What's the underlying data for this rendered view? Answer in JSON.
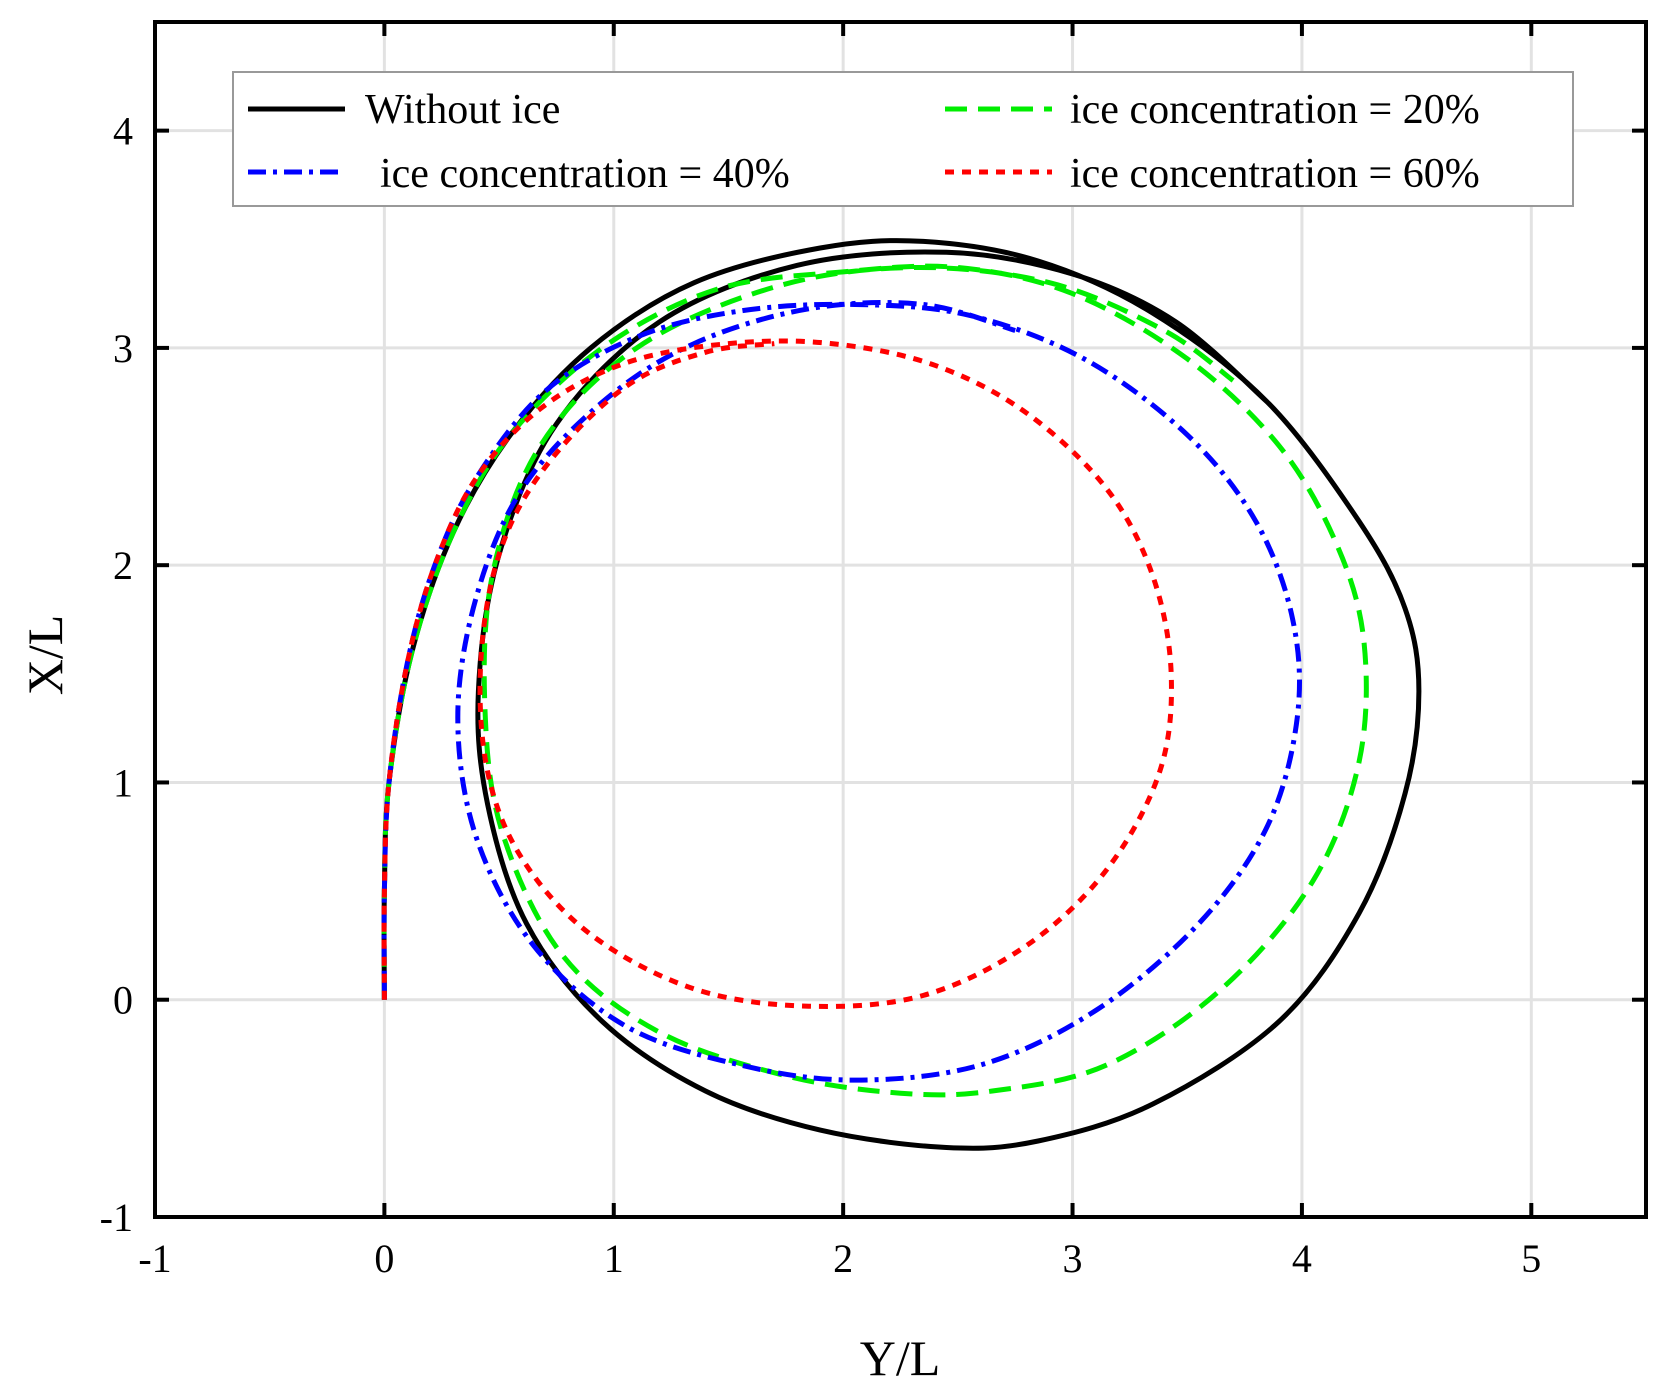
{
  "chart_data": {
    "type": "line",
    "title": "",
    "xlabel": "Y/L",
    "ylabel": "X/L",
    "xlim": [
      -1,
      5.5
    ],
    "ylim": [
      -1,
      4.5
    ],
    "xticks": [
      -1,
      0,
      1,
      2,
      3,
      4,
      5
    ],
    "yticks": [
      -1,
      0,
      1,
      2,
      3,
      4
    ],
    "xtick_labels": [
      "-1",
      "0",
      "1",
      "2",
      "3",
      "4",
      "5"
    ],
    "ytick_labels": [
      "-1",
      "0",
      "1",
      "2",
      "3",
      "4"
    ],
    "grid": true,
    "legend": {
      "location": "top",
      "columns": 2
    },
    "series": [
      {
        "name": "Without ice",
        "color": "#000000",
        "style": "solid",
        "points": [
          [
            0,
            0
          ],
          [
            0,
            0.5
          ],
          [
            0.02,
            1.0
          ],
          [
            0.12,
            1.6
          ],
          [
            0.3,
            2.15
          ],
          [
            0.55,
            2.6
          ],
          [
            0.9,
            3.0
          ],
          [
            1.35,
            3.3
          ],
          [
            1.9,
            3.46
          ],
          [
            2.35,
            3.49
          ],
          [
            2.85,
            3.4
          ],
          [
            3.35,
            3.16
          ],
          [
            3.85,
            2.75
          ],
          [
            4.25,
            2.2
          ],
          [
            4.45,
            1.8
          ],
          [
            4.51,
            1.42
          ],
          [
            4.45,
            0.95
          ],
          [
            4.25,
            0.4
          ],
          [
            3.9,
            -0.1
          ],
          [
            3.35,
            -0.48
          ],
          [
            2.85,
            -0.65
          ],
          [
            2.45,
            -0.68
          ],
          [
            1.9,
            -0.6
          ],
          [
            1.4,
            -0.42
          ],
          [
            0.95,
            -0.1
          ],
          [
            0.62,
            0.35
          ],
          [
            0.45,
            0.9
          ],
          [
            0.41,
            1.42
          ],
          [
            0.5,
            2.05
          ],
          [
            0.75,
            2.65
          ],
          [
            1.2,
            3.12
          ],
          [
            1.8,
            3.38
          ],
          [
            2.45,
            3.44
          ],
          [
            3.0,
            3.34
          ],
          [
            3.45,
            3.12
          ],
          [
            3.85,
            2.75
          ]
        ]
      },
      {
        "name": "ice concentration = 20%",
        "color": "#00ee00",
        "style": "dashed",
        "points": [
          [
            0,
            0
          ],
          [
            0,
            0.5
          ],
          [
            0.02,
            1.0
          ],
          [
            0.12,
            1.6
          ],
          [
            0.3,
            2.15
          ],
          [
            0.55,
            2.6
          ],
          [
            0.95,
            3.0
          ],
          [
            1.45,
            3.27
          ],
          [
            2.0,
            3.35
          ],
          [
            2.5,
            3.37
          ],
          [
            3.0,
            3.25
          ],
          [
            3.5,
            2.95
          ],
          [
            3.9,
            2.55
          ],
          [
            4.15,
            2.1
          ],
          [
            4.27,
            1.65
          ],
          [
            4.25,
            1.1
          ],
          [
            4.05,
            0.55
          ],
          [
            3.65,
            0.05
          ],
          [
            3.15,
            -0.3
          ],
          [
            2.65,
            -0.42
          ],
          [
            2.25,
            -0.43
          ],
          [
            1.75,
            -0.35
          ],
          [
            1.2,
            -0.15
          ],
          [
            0.78,
            0.2
          ],
          [
            0.52,
            0.75
          ],
          [
            0.44,
            1.3
          ],
          [
            0.47,
            1.95
          ],
          [
            0.68,
            2.55
          ],
          [
            1.1,
            3.0
          ],
          [
            1.7,
            3.28
          ],
          [
            2.3,
            3.37
          ],
          [
            2.9,
            3.3
          ],
          [
            3.4,
            3.08
          ],
          [
            3.7,
            2.85
          ]
        ]
      },
      {
        "name": "ice concentration = 40%",
        "color": "#0000ff",
        "style": "dashdot",
        "points": [
          [
            0,
            0
          ],
          [
            0,
            0.5
          ],
          [
            0.02,
            1.0
          ],
          [
            0.1,
            1.55
          ],
          [
            0.22,
            2.0
          ],
          [
            0.4,
            2.4
          ],
          [
            0.7,
            2.8
          ],
          [
            1.1,
            3.05
          ],
          [
            1.55,
            3.17
          ],
          [
            2.05,
            3.2
          ],
          [
            2.55,
            3.15
          ],
          [
            3.05,
            2.95
          ],
          [
            3.5,
            2.6
          ],
          [
            3.8,
            2.2
          ],
          [
            3.96,
            1.75
          ],
          [
            3.98,
            1.3
          ],
          [
            3.85,
            0.8
          ],
          [
            3.55,
            0.35
          ],
          [
            3.1,
            -0.05
          ],
          [
            2.6,
            -0.3
          ],
          [
            2.05,
            -0.37
          ],
          [
            1.55,
            -0.3
          ],
          [
            1.05,
            -0.12
          ],
          [
            0.65,
            0.25
          ],
          [
            0.4,
            0.75
          ],
          [
            0.32,
            1.3
          ],
          [
            0.4,
            1.85
          ],
          [
            0.6,
            2.35
          ],
          [
            0.95,
            2.75
          ],
          [
            1.35,
            3.02
          ],
          [
            1.85,
            3.18
          ],
          [
            2.35,
            3.2
          ],
          [
            2.75,
            3.08
          ]
        ]
      },
      {
        "name": "ice concentration = 60%",
        "color": "#ff0000",
        "style": "dotted",
        "points": [
          [
            0,
            0
          ],
          [
            0,
            0.5
          ],
          [
            0.02,
            1.0
          ],
          [
            0.1,
            1.55
          ],
          [
            0.22,
            2.0
          ],
          [
            0.4,
            2.4
          ],
          [
            0.68,
            2.72
          ],
          [
            1.05,
            2.93
          ],
          [
            1.5,
            3.02
          ],
          [
            1.95,
            3.02
          ],
          [
            2.4,
            2.92
          ],
          [
            2.8,
            2.7
          ],
          [
            3.15,
            2.35
          ],
          [
            3.35,
            1.95
          ],
          [
            3.43,
            1.5
          ],
          [
            3.38,
            1.05
          ],
          [
            3.15,
            0.6
          ],
          [
            2.8,
            0.25
          ],
          [
            2.35,
            0.02
          ],
          [
            1.85,
            -0.03
          ],
          [
            1.35,
            0.05
          ],
          [
            0.9,
            0.3
          ],
          [
            0.6,
            0.65
          ],
          [
            0.45,
            1.05
          ],
          [
            0.42,
            1.55
          ],
          [
            0.5,
            2.05
          ],
          [
            0.7,
            2.45
          ],
          [
            1.05,
            2.82
          ],
          [
            1.4,
            2.98
          ],
          [
            1.7,
            3.02
          ]
        ]
      }
    ]
  }
}
